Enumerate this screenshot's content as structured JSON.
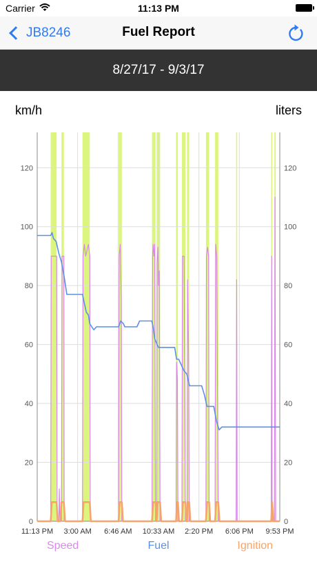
{
  "status_bar": {
    "carrier": "Carrier",
    "time": "11:13 PM"
  },
  "nav": {
    "back_label": "JB8246",
    "title": "Fuel Report"
  },
  "date_range": "8/27/17 - 9/3/17",
  "chart_labels": {
    "left_unit": "km/h",
    "right_unit": "liters"
  },
  "colors": {
    "accent": "#2f7bf5",
    "header_bg": "#333333",
    "speed": "#d98ae8",
    "fuel": "#5b8fe8",
    "ignition": "#f6a46a",
    "movement_band": "#dcf57e",
    "grid": "#dddddd"
  },
  "chart_data": {
    "type": "line",
    "x_ticks": [
      "11:13 PM",
      "3:00 AM",
      "6:46 AM",
      "10:33 AM",
      "2:20 PM",
      "6:06 PM",
      "9:53 PM"
    ],
    "x_range": [
      0,
      9
    ],
    "y_left": {
      "label": "km/h",
      "ticks": [
        0,
        20,
        40,
        60,
        80,
        100,
        120
      ],
      "range": [
        0,
        132
      ]
    },
    "y_right": {
      "label": "liters",
      "ticks": [
        0,
        20,
        40,
        60,
        80,
        100,
        120
      ],
      "range": [
        0,
        132
      ]
    },
    "grid": true,
    "legend": {
      "position": "bottom",
      "entries": [
        "Speed",
        "Fuel",
        "Ignition"
      ]
    },
    "highlight_bands": [
      [
        0.5,
        0.72
      ],
      [
        0.9,
        0.99
      ],
      [
        1.68,
        1.95
      ],
      [
        3.02,
        3.14
      ],
      [
        4.26,
        4.39
      ],
      [
        4.43,
        4.56
      ],
      [
        5.15,
        5.22
      ],
      [
        5.37,
        5.5
      ],
      [
        5.56,
        5.64
      ],
      [
        6.26,
        6.38
      ],
      [
        6.6,
        6.72
      ],
      [
        7.38,
        7.42
      ],
      [
        8.68,
        8.72
      ],
      [
        8.8,
        8.85
      ]
    ],
    "series": [
      {
        "name": "Speed",
        "points": [
          [
            0,
            0
          ],
          [
            0.5,
            0
          ],
          [
            0.52,
            90
          ],
          [
            0.72,
            90
          ],
          [
            0.74,
            0
          ],
          [
            0.8,
            0
          ],
          [
            0.82,
            11
          ],
          [
            0.84,
            0
          ],
          [
            0.9,
            0
          ],
          [
            0.92,
            90
          ],
          [
            0.99,
            90
          ],
          [
            1.0,
            0
          ],
          [
            1.68,
            0
          ],
          [
            1.7,
            90
          ],
          [
            1.75,
            94
          ],
          [
            1.8,
            90
          ],
          [
            1.9,
            94
          ],
          [
            1.95,
            90
          ],
          [
            1.97,
            0
          ],
          [
            3.02,
            0
          ],
          [
            3.04,
            90
          ],
          [
            3.08,
            94
          ],
          [
            3.12,
            76
          ],
          [
            3.14,
            0
          ],
          [
            4.26,
            0
          ],
          [
            4.28,
            90
          ],
          [
            4.3,
            94
          ],
          [
            4.33,
            90
          ],
          [
            4.36,
            94
          ],
          [
            4.39,
            0
          ],
          [
            4.43,
            0
          ],
          [
            4.45,
            88
          ],
          [
            4.48,
            93
          ],
          [
            4.5,
            80
          ],
          [
            4.53,
            85
          ],
          [
            4.56,
            0
          ],
          [
            5.15,
            0
          ],
          [
            5.17,
            54
          ],
          [
            5.2,
            48
          ],
          [
            5.22,
            0
          ],
          [
            5.37,
            0
          ],
          [
            5.39,
            90
          ],
          [
            5.45,
            90
          ],
          [
            5.5,
            0
          ],
          [
            5.56,
            0
          ],
          [
            5.58,
            82
          ],
          [
            5.62,
            55
          ],
          [
            5.64,
            0
          ],
          [
            6.26,
            0
          ],
          [
            6.28,
            90
          ],
          [
            6.32,
            93
          ],
          [
            6.36,
            90
          ],
          [
            6.38,
            0
          ],
          [
            6.6,
            0
          ],
          [
            6.62,
            94
          ],
          [
            6.66,
            90
          ],
          [
            6.72,
            0
          ],
          [
            7.38,
            0
          ],
          [
            7.4,
            82
          ],
          [
            7.42,
            0
          ],
          [
            8.68,
            0
          ],
          [
            8.7,
            90
          ],
          [
            8.72,
            0
          ],
          [
            8.8,
            0
          ],
          [
            8.82,
            110
          ],
          [
            8.85,
            0
          ],
          [
            9,
            0
          ]
        ]
      },
      {
        "name": "Fuel",
        "points": [
          [
            0,
            97
          ],
          [
            0.5,
            97
          ],
          [
            0.55,
            98
          ],
          [
            0.6,
            96
          ],
          [
            0.7,
            95
          ],
          [
            0.8,
            91
          ],
          [
            0.9,
            88
          ],
          [
            1.0,
            83
          ],
          [
            1.1,
            77
          ],
          [
            1.68,
            77
          ],
          [
            1.75,
            74
          ],
          [
            1.82,
            71
          ],
          [
            1.9,
            70
          ],
          [
            1.95,
            67
          ],
          [
            2.1,
            65
          ],
          [
            2.2,
            66
          ],
          [
            3.02,
            66
          ],
          [
            3.1,
            68
          ],
          [
            3.2,
            67
          ],
          [
            3.25,
            66
          ],
          [
            3.7,
            66
          ],
          [
            3.8,
            68
          ],
          [
            4.25,
            68
          ],
          [
            4.3,
            66
          ],
          [
            4.36,
            62
          ],
          [
            4.45,
            60
          ],
          [
            4.5,
            59
          ],
          [
            5.1,
            59
          ],
          [
            5.17,
            55
          ],
          [
            5.25,
            55
          ],
          [
            5.35,
            53
          ],
          [
            5.45,
            51
          ],
          [
            5.55,
            50
          ],
          [
            5.65,
            46
          ],
          [
            6.1,
            46
          ],
          [
            6.2,
            43
          ],
          [
            6.3,
            39
          ],
          [
            6.55,
            39
          ],
          [
            6.65,
            34
          ],
          [
            6.75,
            31
          ],
          [
            6.85,
            32
          ],
          [
            7.4,
            32
          ],
          [
            8.8,
            32
          ],
          [
            9,
            32
          ]
        ]
      },
      {
        "name": "Ignition",
        "points": [
          [
            0,
            0
          ],
          [
            0.5,
            0
          ],
          [
            0.54,
            6.5
          ],
          [
            0.72,
            6.5
          ],
          [
            0.76,
            0
          ],
          [
            0.86,
            0
          ],
          [
            0.9,
            6.5
          ],
          [
            0.99,
            6.5
          ],
          [
            1.03,
            0
          ],
          [
            1.68,
            0
          ],
          [
            1.72,
            6.5
          ],
          [
            1.95,
            6.5
          ],
          [
            1.99,
            0
          ],
          [
            3.02,
            0
          ],
          [
            3.06,
            6.5
          ],
          [
            3.14,
            6.5
          ],
          [
            3.18,
            0
          ],
          [
            4.26,
            0
          ],
          [
            4.3,
            6.5
          ],
          [
            4.39,
            6.5
          ],
          [
            4.43,
            0
          ],
          [
            4.47,
            6.5
          ],
          [
            4.56,
            6.5
          ],
          [
            4.6,
            0
          ],
          [
            5.15,
            0
          ],
          [
            5.19,
            6.5
          ],
          [
            5.22,
            6.5
          ],
          [
            5.26,
            0
          ],
          [
            5.37,
            0
          ],
          [
            5.41,
            6.5
          ],
          [
            5.5,
            6.5
          ],
          [
            5.54,
            0
          ],
          [
            5.56,
            0
          ],
          [
            5.6,
            6.5
          ],
          [
            5.64,
            6.5
          ],
          [
            5.68,
            0
          ],
          [
            6.26,
            0
          ],
          [
            6.3,
            6.5
          ],
          [
            6.38,
            6.5
          ],
          [
            6.42,
            0
          ],
          [
            6.6,
            0
          ],
          [
            6.64,
            6.5
          ],
          [
            6.72,
            6.5
          ],
          [
            6.76,
            0
          ],
          [
            8.68,
            0
          ],
          [
            8.72,
            6.5
          ],
          [
            8.76,
            0
          ],
          [
            9,
            0
          ]
        ]
      }
    ]
  }
}
